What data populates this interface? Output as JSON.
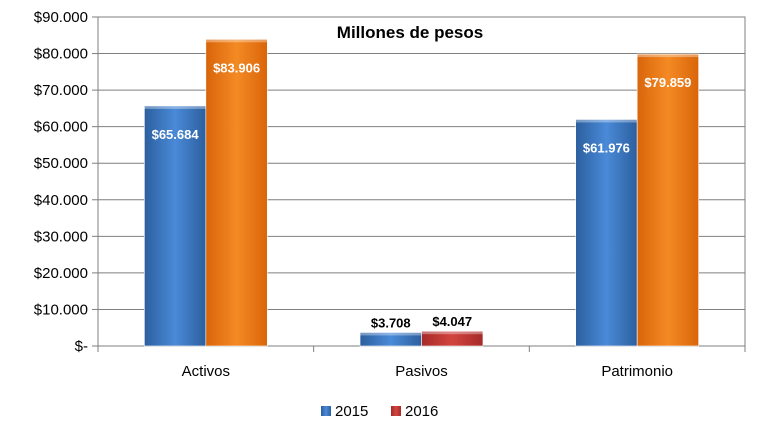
{
  "chart_data": {
    "type": "bar",
    "title": "Millones de pesos",
    "categories": [
      "Activos",
      "Pasivos",
      "Patrimonio"
    ],
    "series": [
      {
        "name": "2015",
        "values": [
          65684,
          3708,
          61976
        ],
        "labels": [
          "$65.684",
          "$3.708",
          "$61.976"
        ],
        "color": "#3a78c8",
        "colors": [
          "#3a78c8",
          "#3a78c8",
          "#3a78c8"
        ]
      },
      {
        "name": "2016",
        "values": [
          83906,
          4047,
          79859
        ],
        "labels": [
          "$83.906",
          "$4.047",
          "$79.859"
        ],
        "color": "#c0392b",
        "colors": [
          "#f07d18",
          "#c93a38",
          "#f07d18"
        ]
      }
    ],
    "ylim": [
      0,
      90000
    ],
    "yticks": [
      0,
      10000,
      20000,
      30000,
      40000,
      50000,
      60000,
      70000,
      80000,
      90000
    ],
    "ytick_labels": [
      "$-",
      "$10.000",
      "$20.000",
      "$30.000",
      "$40.000",
      "$50.000",
      "$60.000",
      "$70.000",
      "$80.000",
      "$90.000"
    ],
    "grid": true,
    "legend_position": "bottom"
  }
}
